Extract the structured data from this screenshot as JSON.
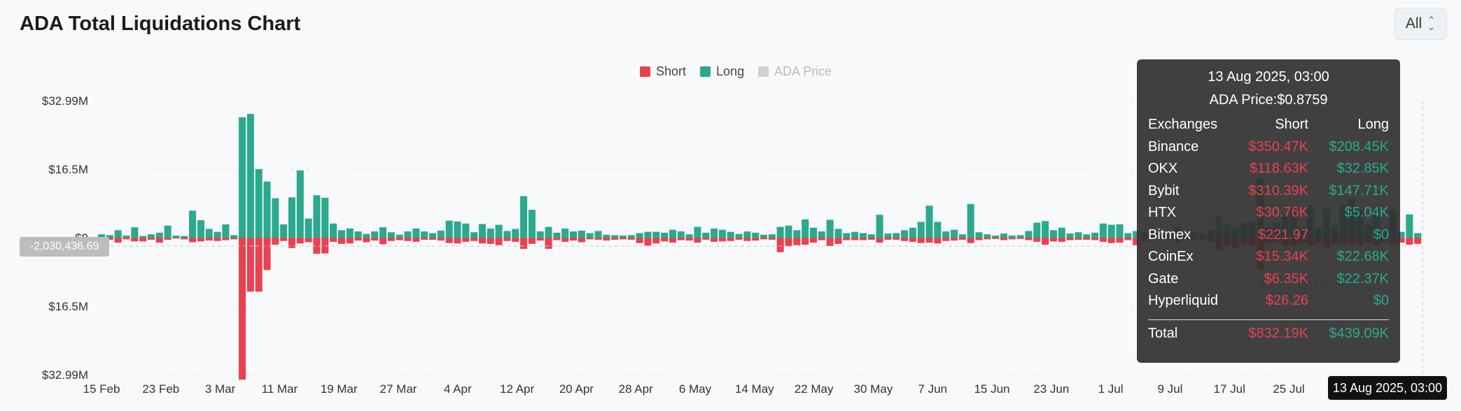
{
  "page": {
    "title": "ADA Total Liquidations Chart",
    "range_select": {
      "value": "All",
      "icon": "chevron-updown-icon"
    }
  },
  "legend": [
    {
      "label": "Short",
      "color": "#e8414f",
      "active": true
    },
    {
      "label": "Long",
      "color": "#2aa98f",
      "active": true
    },
    {
      "label": "ADA Price",
      "color": "#d0d0d0",
      "active": false
    }
  ],
  "crosshair": {
    "y_value": "-2,030,436.69",
    "x_value": "13 Aug 2025, 03:00"
  },
  "watermark": "coinglass",
  "tooltip": {
    "date": "13 Aug 2025, 03:00",
    "price_label": "ADA Price:",
    "price_value": "$0.8759",
    "headers": [
      "Exchanges",
      "Short",
      "Long"
    ],
    "rows": [
      {
        "exchange": "Binance",
        "short": "$350.47K",
        "long": "$208.45K"
      },
      {
        "exchange": "OKX",
        "short": "$118.63K",
        "long": "$32.85K"
      },
      {
        "exchange": "Bybit",
        "short": "$310.39K",
        "long": "$147.71K"
      },
      {
        "exchange": "HTX",
        "short": "$30.76K",
        "long": "$5.04K"
      },
      {
        "exchange": "Bitmex",
        "short": "$221.97",
        "long": "$0"
      },
      {
        "exchange": "CoinEx",
        "short": "$15.34K",
        "long": "$22.68K"
      },
      {
        "exchange": "Gate",
        "short": "$6.35K",
        "long": "$22.37K"
      },
      {
        "exchange": "Hyperliquid",
        "short": "$26.26",
        "long": "$0"
      }
    ],
    "total": {
      "label": "Total",
      "short": "$832.19K",
      "long": "$439.09K"
    }
  },
  "chart_data": {
    "type": "bar",
    "ylim": [
      -32.99,
      32.99
    ],
    "y_unit": "M (USD)",
    "yticks": [
      {
        "value": 32.99,
        "label": "$32.99M"
      },
      {
        "value": 16.5,
        "label": "$16.5M"
      },
      {
        "value": 0,
        "label": "$0"
      },
      {
        "value": -16.5,
        "label": "$16.5M"
      },
      {
        "value": -32.99,
        "label": "$32.99M"
      }
    ],
    "xtick_labels": [
      "15 Feb",
      "23 Feb",
      "3 Mar",
      "11 Mar",
      "19 Mar",
      "27 Mar",
      "4 Apr",
      "12 Apr",
      "20 Apr",
      "28 Apr",
      "6 May",
      "14 May",
      "22 May",
      "30 May",
      "7 Jun",
      "15 Jun",
      "23 Jun",
      "1 Jul",
      "9 Jul",
      "17 Jul",
      "25 Jul",
      "13 Aug 2025, 03:00"
    ],
    "grid": "horizontal-dashed",
    "series": [
      {
        "name": "Long",
        "color": "#2aa98f",
        "values": [
          0.8,
          0.6,
          1.8,
          0.5,
          2.5,
          0.4,
          0.8,
          1.2,
          2.9,
          0.5,
          0.4,
          6.5,
          4.2,
          2.1,
          1.4,
          3.2,
          0.6,
          29,
          29.8,
          16.5,
          13.5,
          9.5,
          3.2,
          9.7,
          16.2,
          4.6,
          10.2,
          9.6,
          3.4,
          1.8,
          2.2,
          1.5,
          0.9,
          1.5,
          2.5,
          1.3,
          0.7,
          1.5,
          2.2,
          1.5,
          1.1,
          1.7,
          4.1,
          3.9,
          3.4,
          1.3,
          3.3,
          2.2,
          3.1,
          1.6,
          2.1,
          10,
          6.7,
          1.5,
          2.6,
          1.2,
          2.2,
          1.5,
          1.7,
          1.1,
          1.6,
          0.7,
          0.6,
          0.5,
          0.6,
          1.1,
          1.4,
          1.4,
          1.2,
          1.9,
          1.5,
          0.8,
          2.6,
          1.2,
          2.2,
          1.9,
          1.4,
          0.9,
          1.5,
          1.2,
          0.7,
          0.8,
          2.6,
          2.9,
          1.8,
          4.4,
          2.4,
          1.5,
          4.3,
          2.1,
          1.1,
          1.4,
          1.1,
          0.8,
          5.5,
          1,
          1.1,
          1.8,
          2.4,
          3.8,
          7.7,
          3.8,
          1.5,
          1.9,
          0.8,
          8.1,
          1.3,
          0.8,
          0.5,
          1,
          0.5,
          0.6,
          1.6,
          3.6,
          4,
          1.8,
          2.4,
          1,
          1.3,
          0.8,
          1.2,
          3.4,
          3.1,
          3.2,
          1.1,
          1.6,
          1.3,
          1.6,
          0.7,
          1.3,
          2.6,
          0.7,
          1.3,
          1.1,
          1.7,
          5.2,
          3.1,
          2.4,
          3.5,
          4,
          14.2,
          2.6,
          3.5,
          5.3,
          7.3,
          2.5,
          7.8,
          2.4,
          6.9,
          2.9,
          8,
          9.3,
          6.6,
          3,
          6.9,
          1.9,
          6.8,
          1.4,
          5.6,
          1.1
        ]
      },
      {
        "name": "Short",
        "color": "#e8414f",
        "values": [
          0.4,
          0.5,
          1.2,
          0.4,
          0.9,
          0.9,
          0.5,
          1.2,
          0.5,
          0.2,
          0.4,
          1.1,
          0.9,
          0.7,
          0.8,
          0.6,
          0.4,
          34.2,
          13,
          13,
          7.8,
          1.7,
          0.8,
          2.5,
          1.4,
          1.1,
          3.9,
          3.8,
          1,
          1.5,
          1.4,
          0.7,
          1.1,
          0.7,
          1.6,
          0.8,
          0.6,
          0.8,
          1,
          0.5,
          0.5,
          0.7,
          1.3,
          1.4,
          1,
          0.8,
          1.4,
          1.5,
          1.8,
          0.8,
          1,
          2.7,
          1.5,
          0.7,
          2.7,
          0.6,
          1,
          0.7,
          1.1,
          0.4,
          0.5,
          0.7,
          0.5,
          0.4,
          0.5,
          1.3,
          1.9,
          1.4,
          0.9,
          1.2,
          0.6,
          0.7,
          1.2,
          0.5,
          1,
          0.9,
          0.8,
          0.5,
          0.8,
          0.7,
          0.4,
          0.5,
          3.5,
          2.1,
          1.8,
          1.7,
          1.2,
          0.6,
          2,
          1.5,
          0.6,
          0.6,
          0.6,
          0.5,
          1.2,
          0.5,
          0.5,
          0.8,
          1,
          1.3,
          1.2,
          1.4,
          0.8,
          0.7,
          0.5,
          1.3,
          0.6,
          0.4,
          0.3,
          0.6,
          0.4,
          0.3,
          0.6,
          1,
          1.7,
          0.9,
          1,
          0.6,
          0.5,
          0.5,
          0.6,
          1,
          1.3,
          1.2,
          0.6,
          1.8,
          0.9,
          0.6,
          0.4,
          0.6,
          1.1,
          0.5,
          0.6,
          0.5,
          0.9,
          3,
          2.1,
          2.4,
          1.6,
          1.8,
          7.6,
          1.3,
          1.1,
          2,
          1.8,
          1.2,
          1.9,
          1.3,
          2.5,
          1.5,
          1.6,
          1.7,
          1.8,
          1.3,
          1.7,
          0.9,
          1.5,
          1.2,
          1.7,
          1.5
        ]
      }
    ]
  }
}
